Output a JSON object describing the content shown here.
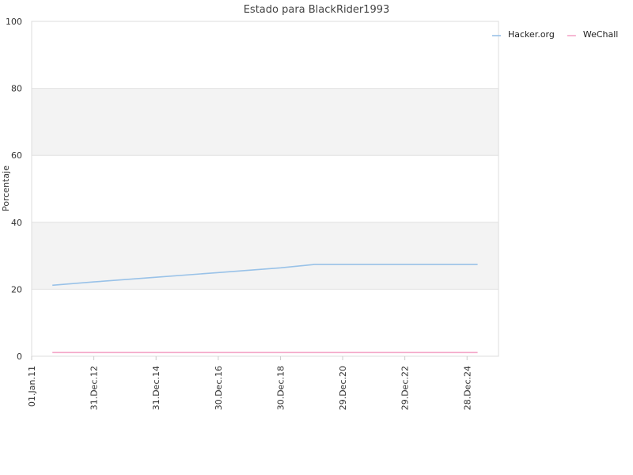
{
  "chart_data": {
    "type": "line",
    "title": "Estado para BlackRider1993",
    "ylabel": "Porcentaje",
    "ylim": [
      0,
      100
    ],
    "yticks": [
      0,
      20,
      40,
      60,
      80,
      100
    ],
    "xlim": [
      "2011-01-01",
      "2026-01-01"
    ],
    "xticks": [
      "01.Jan.11",
      "31.Dec.12",
      "31.Dec.14",
      "30.Dec.16",
      "30.Dec.18",
      "29.Dec.20",
      "29.Dec.22",
      "28.Dec.24"
    ],
    "xtick_dates": [
      "2011-01-01",
      "2012-12-31",
      "2014-12-31",
      "2016-12-30",
      "2018-12-30",
      "2020-12-29",
      "2022-12-29",
      "2024-12-28"
    ],
    "grid": true,
    "banded_background": true,
    "legend_position": "top-right",
    "series": [
      {
        "name": "Hacker.org",
        "color": "#99c2e8",
        "x": [
          "2011-09-01",
          "2013-01-01",
          "2015-01-01",
          "2017-01-01",
          "2019-01-01",
          "2020-02-01",
          "2021-01-01",
          "2023-01-01",
          "2024-12-01",
          "2025-05-01"
        ],
        "y": [
          21.2,
          22.2,
          23.6,
          25.0,
          26.4,
          27.4,
          27.4,
          27.4,
          27.4,
          27.4
        ]
      },
      {
        "name": "WeChall",
        "color": "#f4a6c8",
        "x": [
          "2011-09-01",
          "2025-05-01"
        ],
        "y": [
          1.1,
          1.1
        ]
      }
    ]
  }
}
